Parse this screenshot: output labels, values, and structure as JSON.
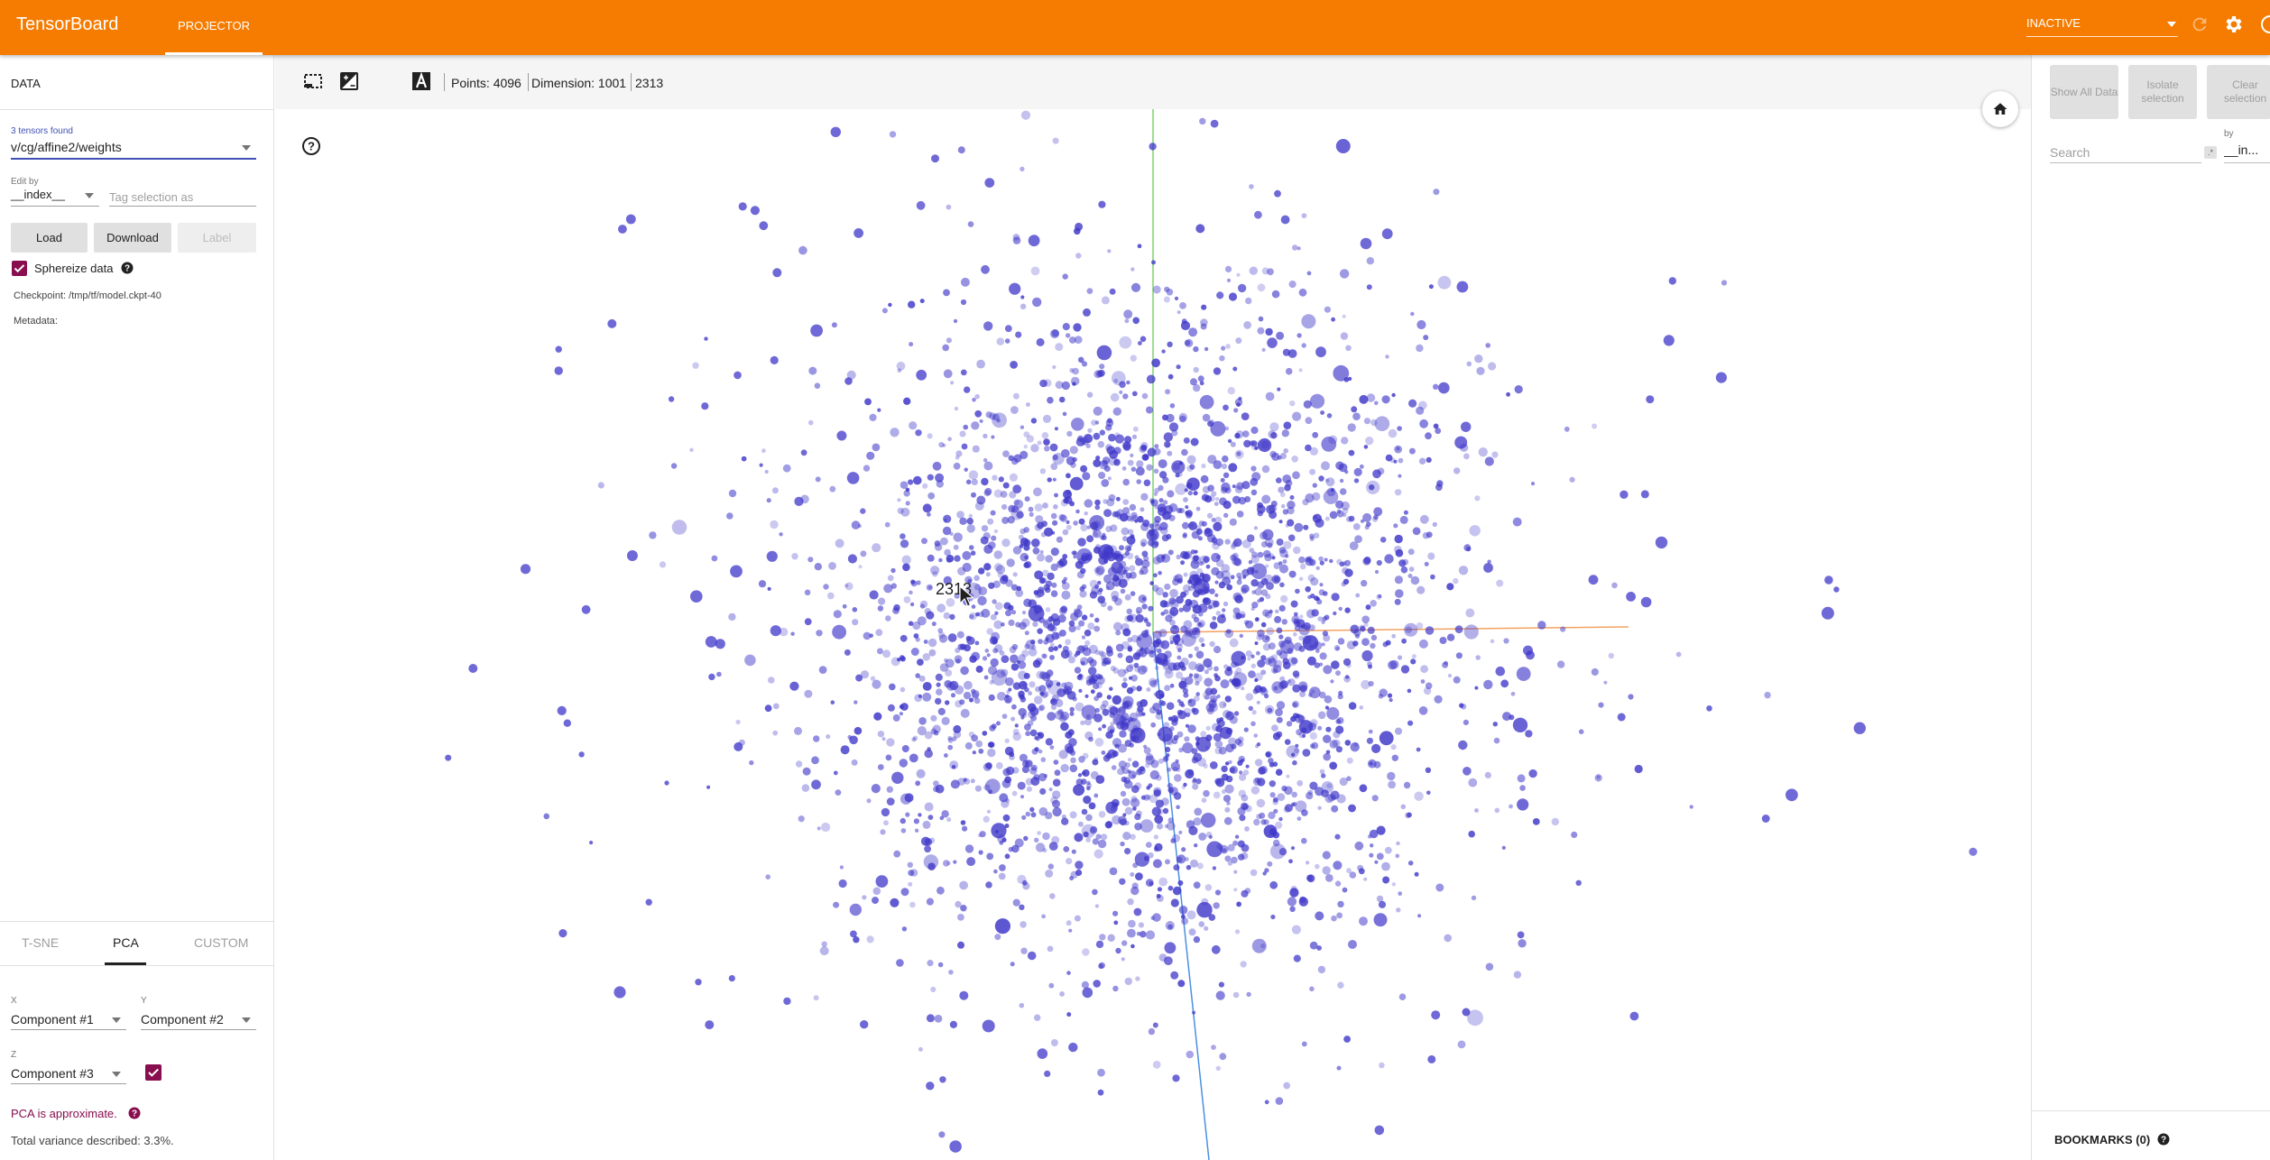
{
  "header": {
    "brand": "TensorBoard",
    "tab": "PROJECTOR",
    "run_status": "INACTIVE"
  },
  "left_panel": {
    "title": "DATA",
    "tensors_found": "3 tensors found",
    "tensor_selected": "v/cg/affine2/weights",
    "edit_by_label": "Edit by",
    "edit_by_value": "__index__",
    "tag_placeholder": "Tag selection as",
    "buttons": {
      "load": "Load",
      "download": "Download",
      "label": "Label"
    },
    "sphereize_label": "Sphereize data",
    "sphereize_checked": true,
    "checkpoint": "Checkpoint:  /tmp/tf/model.ckpt-40",
    "metadata": "Metadata:",
    "projection_tabs": [
      "T-SNE",
      "PCA",
      "CUSTOM"
    ],
    "active_tab": "PCA",
    "x_label": "X",
    "x_value": "Component #1",
    "y_label": "Y",
    "y_value": "Component #2",
    "z_label": "Z",
    "z_value": "Component #3",
    "z_enabled": true,
    "pca_note": "PCA is approximate.",
    "variance": "Total variance described: 3.3%."
  },
  "toolbar": {
    "icons": [
      "select-rectangle-icon",
      "night-mode-contrast-icon",
      "moon-icon",
      "label-font-icon"
    ],
    "points": "Points: 4096",
    "dimension": "Dimension: 1001",
    "selected_point": "2313"
  },
  "scatter": {
    "hovered_label": "2313",
    "point_count": 4096,
    "point_color": "#3f37c9",
    "axis_colors": {
      "x": "#f4a261",
      "y": "#7cd36b",
      "z": "#4a90e2"
    }
  },
  "right_panel": {
    "buttons": [
      "Show All Data",
      "Isolate selection",
      "Clear selection"
    ],
    "search_placeholder": "Search",
    "regex_symbol": ".*",
    "by_label": "by",
    "by_value": "__in...",
    "bookmarks": "BOOKMARKS (0)"
  },
  "colors": {
    "header": "#f57c00",
    "accent": "#880e4f",
    "focus": "#3f51b5"
  }
}
